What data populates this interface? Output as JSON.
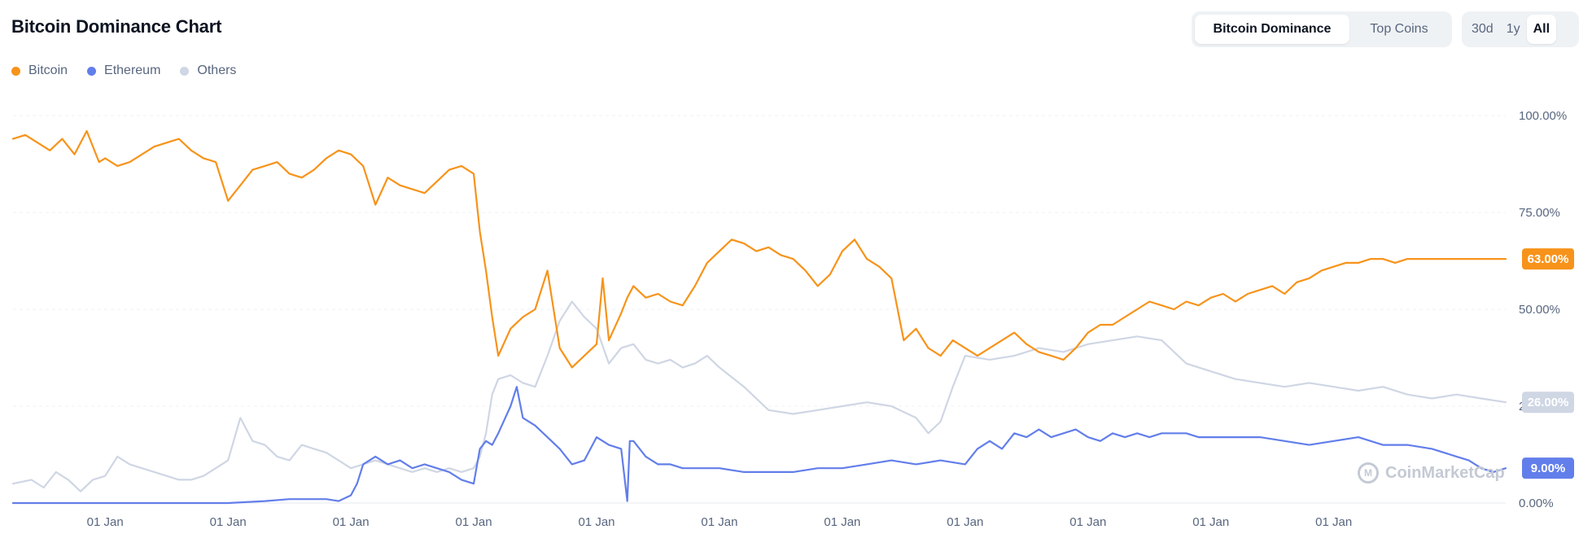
{
  "header": {
    "title": "Bitcoin Dominance Chart",
    "view_tabs": [
      "Bitcoin Dominance",
      "Top Coins"
    ],
    "active_view": "Bitcoin Dominance",
    "range_tabs": [
      "30d",
      "1y",
      "All"
    ],
    "active_range": "All"
  },
  "watermark": {
    "text": "CoinMarketCap"
  },
  "chart_data": {
    "type": "line",
    "title": "",
    "xlabel": "",
    "ylabel": "",
    "ylim": [
      0,
      100
    ],
    "y_ticks": [
      "0.00%",
      "25.00%",
      "50.00%",
      "75.00%",
      "100.00%"
    ],
    "x_tick_labels": [
      "01 Jan",
      "01 Jan",
      "01 Jan",
      "01 Jan",
      "01 Jan",
      "01 Jan",
      "01 Jan",
      "01 Jan",
      "01 Jan",
      "01 Jan",
      "01 Jan"
    ],
    "grid": true,
    "legend_position": "top-left",
    "x_range": [
      2013.25,
      2025.4
    ],
    "x_ticks": [
      2014,
      2015,
      2016,
      2017,
      2018,
      2019,
      2020,
      2021,
      2022,
      2023,
      2024
    ],
    "series": [
      {
        "name": "Bitcoin",
        "color": "#f7931a",
        "last_label": "63.00%",
        "x": [
          2013.25,
          2013.35,
          2013.45,
          2013.55,
          2013.65,
          2013.75,
          2013.85,
          2013.95,
          2014.0,
          2014.1,
          2014.2,
          2014.3,
          2014.4,
          2014.5,
          2014.6,
          2014.7,
          2014.8,
          2014.9,
          2015.0,
          2015.1,
          2015.2,
          2015.3,
          2015.4,
          2015.5,
          2015.6,
          2015.7,
          2015.8,
          2015.9,
          2016.0,
          2016.1,
          2016.2,
          2016.3,
          2016.4,
          2016.5,
          2016.6,
          2016.7,
          2016.8,
          2016.9,
          2017.0,
          2017.05,
          2017.1,
          2017.15,
          2017.2,
          2017.3,
          2017.4,
          2017.5,
          2017.6,
          2017.7,
          2017.8,
          2017.9,
          2018.0,
          2018.05,
          2018.1,
          2018.2,
          2018.25,
          2018.3,
          2018.4,
          2018.5,
          2018.6,
          2018.7,
          2018.8,
          2018.9,
          2019.0,
          2019.1,
          2019.2,
          2019.3,
          2019.4,
          2019.5,
          2019.6,
          2019.7,
          2019.8,
          2019.9,
          2020.0,
          2020.1,
          2020.2,
          2020.3,
          2020.4,
          2020.5,
          2020.6,
          2020.7,
          2020.8,
          2020.9,
          2021.0,
          2021.1,
          2021.2,
          2021.3,
          2021.4,
          2021.5,
          2021.6,
          2021.7,
          2021.8,
          2021.9,
          2022.0,
          2022.1,
          2022.2,
          2022.3,
          2022.4,
          2022.5,
          2022.6,
          2022.7,
          2022.8,
          2022.9,
          2023.0,
          2023.1,
          2023.2,
          2023.3,
          2023.4,
          2023.5,
          2023.6,
          2023.7,
          2023.8,
          2023.9,
          2024.0,
          2024.1,
          2024.2,
          2024.3,
          2024.4,
          2024.5,
          2024.6,
          2024.7,
          2024.8,
          2024.9,
          2025.0,
          2025.1,
          2025.2,
          2025.3,
          2025.4
        ],
        "y": [
          94,
          95,
          93,
          91,
          94,
          90,
          96,
          88,
          89,
          87,
          88,
          90,
          92,
          93,
          94,
          91,
          89,
          88,
          78,
          82,
          86,
          87,
          88,
          85,
          84,
          86,
          89,
          91,
          90,
          87,
          77,
          84,
          82,
          81,
          80,
          83,
          86,
          87,
          85,
          70,
          60,
          48,
          38,
          45,
          48,
          50,
          60,
          40,
          35,
          38,
          41,
          58,
          42,
          49,
          53,
          56,
          53,
          54,
          52,
          51,
          56,
          62,
          65,
          68,
          67,
          65,
          66,
          64,
          63,
          60,
          56,
          59,
          65,
          68,
          63,
          61,
          58,
          42,
          45,
          40,
          38,
          42,
          40,
          38,
          40,
          42,
          44,
          41,
          39,
          38,
          37,
          40,
          44,
          46,
          46,
          48,
          50,
          52,
          51,
          50,
          52,
          51,
          53,
          54,
          52,
          54,
          55,
          56,
          54,
          57,
          58,
          60,
          61,
          62,
          62,
          63,
          63,
          62,
          63,
          63,
          63,
          63,
          63,
          63,
          63,
          63,
          63
        ]
      },
      {
        "name": "Ethereum",
        "color": "#627eea",
        "last_label": "9.00%",
        "x": [
          2013.25,
          2013.5,
          2014.0,
          2014.5,
          2015.0,
          2015.3,
          2015.5,
          2015.6,
          2015.7,
          2015.8,
          2015.9,
          2016.0,
          2016.05,
          2016.1,
          2016.2,
          2016.3,
          2016.4,
          2016.5,
          2016.6,
          2016.7,
          2016.8,
          2016.9,
          2017.0,
          2017.05,
          2017.1,
          2017.15,
          2017.2,
          2017.3,
          2017.35,
          2017.4,
          2017.5,
          2017.6,
          2017.7,
          2017.8,
          2017.9,
          2018.0,
          2018.1,
          2018.2,
          2018.25,
          2018.27,
          2018.3,
          2018.4,
          2018.5,
          2018.6,
          2018.7,
          2018.8,
          2018.9,
          2019.0,
          2019.2,
          2019.4,
          2019.6,
          2019.8,
          2020.0,
          2020.2,
          2020.4,
          2020.6,
          2020.8,
          2021.0,
          2021.1,
          2021.2,
          2021.3,
          2021.4,
          2021.5,
          2021.6,
          2021.7,
          2021.8,
          2021.9,
          2022.0,
          2022.1,
          2022.2,
          2022.3,
          2022.4,
          2022.5,
          2022.6,
          2022.7,
          2022.8,
          2022.9,
          2023.0,
          2023.2,
          2023.4,
          2023.6,
          2023.8,
          2024.0,
          2024.2,
          2024.4,
          2024.6,
          2024.8,
          2025.0,
          2025.1,
          2025.2,
          2025.3,
          2025.4
        ],
        "y": [
          0,
          0,
          0,
          0,
          0,
          0.5,
          1,
          1,
          1,
          1,
          0.5,
          2,
          5,
          10,
          12,
          10,
          11,
          9,
          10,
          9,
          8,
          6,
          5,
          14,
          16,
          15,
          18,
          25,
          30,
          22,
          20,
          17,
          14,
          10,
          11,
          17,
          15,
          14,
          0.5,
          16,
          16,
          12,
          10,
          10,
          9,
          9,
          9,
          9,
          8,
          8,
          8,
          9,
          9,
          10,
          11,
          10,
          11,
          10,
          14,
          16,
          14,
          18,
          17,
          19,
          17,
          18,
          19,
          17,
          16,
          18,
          17,
          18,
          17,
          18,
          18,
          18,
          17,
          17,
          17,
          17,
          16,
          15,
          16,
          17,
          15,
          15,
          14,
          12,
          11,
          9,
          8,
          9
        ]
      },
      {
        "name": "Others",
        "color": "#cfd6e4",
        "last_label": "26.00%",
        "x": [
          2013.25,
          2013.4,
          2013.5,
          2013.6,
          2013.7,
          2013.8,
          2013.9,
          2014.0,
          2014.1,
          2014.2,
          2014.3,
          2014.4,
          2014.5,
          2014.6,
          2014.7,
          2014.8,
          2014.9,
          2015.0,
          2015.1,
          2015.2,
          2015.3,
          2015.4,
          2015.5,
          2015.6,
          2015.7,
          2015.8,
          2015.9,
          2016.0,
          2016.1,
          2016.2,
          2016.3,
          2016.4,
          2016.5,
          2016.6,
          2016.7,
          2016.8,
          2016.9,
          2017.0,
          2017.05,
          2017.1,
          2017.15,
          2017.2,
          2017.3,
          2017.4,
          2017.5,
          2017.6,
          2017.7,
          2017.8,
          2017.9,
          2018.0,
          2018.1,
          2018.2,
          2018.3,
          2018.4,
          2018.5,
          2018.6,
          2018.7,
          2018.8,
          2018.9,
          2019.0,
          2019.2,
          2019.4,
          2019.6,
          2019.8,
          2020.0,
          2020.2,
          2020.4,
          2020.6,
          2020.7,
          2020.8,
          2020.9,
          2021.0,
          2021.2,
          2021.4,
          2021.6,
          2021.8,
          2022.0,
          2022.2,
          2022.4,
          2022.6,
          2022.8,
          2023.0,
          2023.2,
          2023.4,
          2023.6,
          2023.8,
          2024.0,
          2024.2,
          2024.4,
          2024.6,
          2024.8,
          2025.0,
          2025.2,
          2025.4
        ],
        "y": [
          5,
          6,
          4,
          8,
          6,
          3,
          6,
          7,
          12,
          10,
          9,
          8,
          7,
          6,
          6,
          7,
          9,
          11,
          22,
          16,
          15,
          12,
          11,
          15,
          14,
          13,
          11,
          9,
          10,
          11,
          10,
          9,
          8,
          9,
          8,
          9,
          8,
          9,
          12,
          18,
          28,
          32,
          33,
          31,
          30,
          38,
          47,
          52,
          48,
          45,
          36,
          40,
          41,
          37,
          36,
          37,
          35,
          36,
          38,
          35,
          30,
          24,
          23,
          24,
          25,
          26,
          25,
          22,
          18,
          21,
          30,
          38,
          37,
          38,
          40,
          39,
          41,
          42,
          43,
          42,
          36,
          34,
          32,
          31,
          30,
          31,
          30,
          29,
          30,
          28,
          27,
          28,
          27,
          26
        ]
      }
    ]
  }
}
